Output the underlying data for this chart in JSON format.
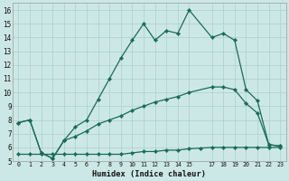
{
  "xlabel": "Humidex (Indice chaleur)",
  "background_color": "#cce8e6",
  "grid_color": "#aacfcc",
  "line_color": "#1a6b5a",
  "xlim": [
    -0.5,
    23.5
  ],
  "ylim": [
    5,
    16.5
  ],
  "xtick_positions": [
    0,
    1,
    2,
    3,
    4,
    5,
    6,
    7,
    8,
    9,
    10,
    11,
    12,
    13,
    14,
    15,
    17,
    18,
    19,
    20,
    21,
    22,
    23
  ],
  "xtick_labels": [
    "0",
    "1",
    "2",
    "3",
    "4",
    "5",
    "6",
    "7",
    "8",
    "9",
    "10",
    "11",
    "12",
    "13",
    "14",
    "15",
    "17",
    "18",
    "19",
    "20",
    "21",
    "22",
    "23"
  ],
  "ytick_positions": [
    5,
    6,
    7,
    8,
    9,
    10,
    11,
    12,
    13,
    14,
    15,
    16
  ],
  "ytick_labels": [
    "5",
    "6",
    "7",
    "8",
    "9",
    "10",
    "11",
    "12",
    "13",
    "14",
    "15",
    "16"
  ],
  "curve1_x": [
    0,
    1,
    2,
    3,
    4,
    5,
    6,
    7,
    8,
    9,
    10,
    11,
    12,
    13,
    14,
    15,
    17,
    18,
    19,
    20,
    21,
    22,
    23
  ],
  "curve1_y": [
    7.8,
    8.0,
    5.6,
    5.2,
    6.5,
    7.5,
    8.0,
    9.5,
    11.0,
    12.5,
    13.8,
    15.0,
    13.8,
    14.5,
    14.3,
    16.0,
    14.0,
    14.3,
    13.8,
    10.2,
    9.4,
    6.2,
    6.1
  ],
  "curve2_x": [
    0,
    1,
    2,
    3,
    4,
    5,
    6,
    7,
    8,
    9,
    10,
    11,
    12,
    13,
    14,
    15,
    17,
    18,
    19,
    20,
    21,
    22,
    23
  ],
  "curve2_y": [
    7.8,
    8.0,
    5.6,
    5.2,
    6.5,
    6.8,
    7.2,
    7.7,
    8.0,
    8.3,
    8.7,
    9.0,
    9.3,
    9.5,
    9.7,
    10.0,
    10.4,
    10.4,
    10.2,
    9.2,
    8.5,
    6.2,
    6.1
  ],
  "curve3_x": [
    0,
    1,
    2,
    3,
    4,
    5,
    6,
    7,
    8,
    9,
    10,
    11,
    12,
    13,
    14,
    15,
    16,
    17,
    18,
    19,
    20,
    21,
    22,
    23
  ],
  "curve3_y": [
    5.5,
    5.5,
    5.5,
    5.5,
    5.5,
    5.5,
    5.5,
    5.5,
    5.5,
    5.5,
    5.6,
    5.7,
    5.7,
    5.8,
    5.8,
    5.9,
    5.95,
    6.0,
    6.0,
    6.0,
    6.0,
    6.0,
    6.0,
    6.0
  ]
}
